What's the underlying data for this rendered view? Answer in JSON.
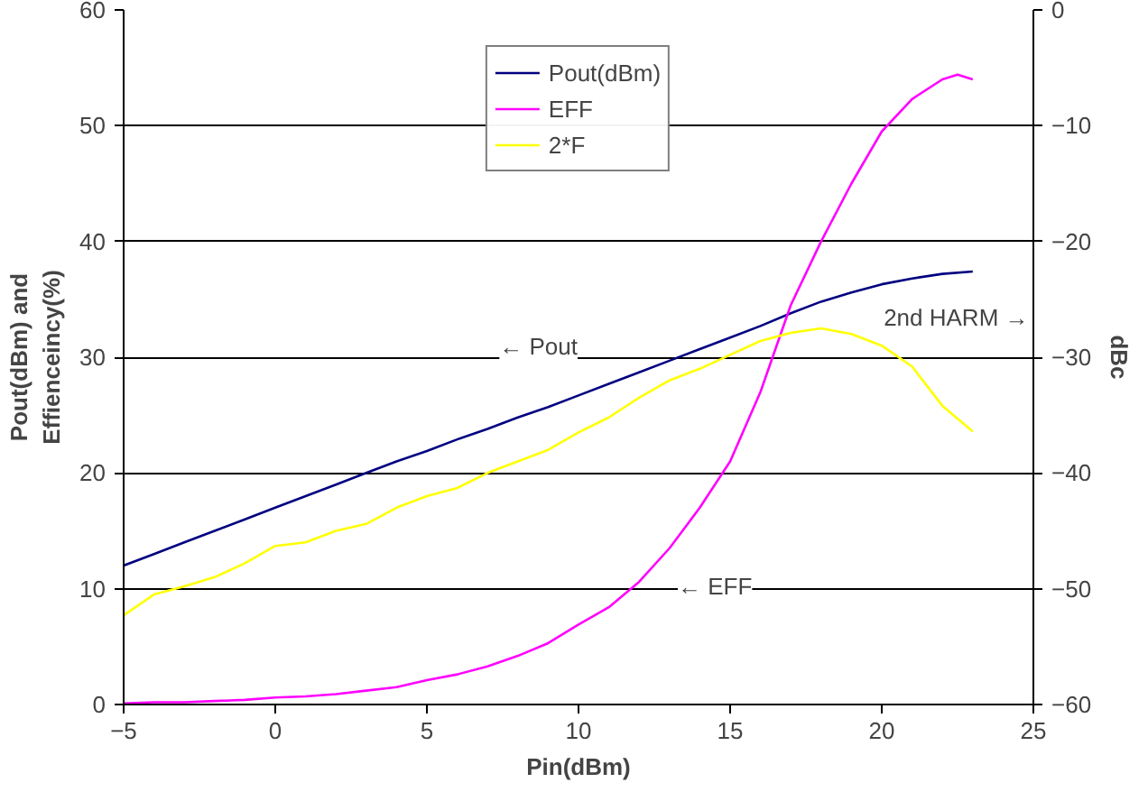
{
  "chart_data": {
    "type": "line",
    "xlabel": "Pin(dBm)",
    "ylabel": "Pout(dBm) and\nEffienceincy(%)",
    "y2label": "dBc",
    "xlim": [
      -5,
      25
    ],
    "xticks": [
      -5,
      0,
      5,
      10,
      15,
      20,
      25
    ],
    "ylim": [
      0,
      60
    ],
    "yticks": [
      0,
      10,
      20,
      30,
      40,
      50,
      60
    ],
    "y2lim": [
      -60,
      0
    ],
    "y2ticks": [
      -60,
      -50,
      -40,
      -30,
      -20,
      -10,
      0
    ],
    "grid": "y",
    "legend": "top",
    "marker": "none",
    "line_style": "solid",
    "series": [
      {
        "name": "Pout(dBm)",
        "color": "#000080",
        "x": [
          -5,
          -4,
          -3,
          -2,
          -1,
          0,
          1,
          2,
          3,
          4,
          5,
          6,
          7,
          8,
          9,
          10,
          11,
          12,
          13,
          14,
          15,
          16,
          17,
          18,
          19,
          20,
          21,
          22,
          23
        ],
        "values": [
          12,
          13,
          14,
          15,
          16,
          17,
          18,
          19,
          20,
          21,
          21.9,
          22.9,
          23.8,
          24.8,
          25.7,
          26.7,
          27.7,
          28.7,
          29.7,
          30.7,
          31.7,
          32.7,
          33.8,
          34.8,
          35.6,
          36.3,
          36.8,
          37.2,
          37.4
        ]
      },
      {
        "name": "EFF",
        "color": "#ff00ff",
        "x": [
          -5,
          -4,
          -3,
          -2,
          -1,
          0,
          1,
          2,
          3,
          4,
          5,
          6,
          7,
          8,
          9,
          10,
          11,
          12,
          13,
          14,
          15,
          16,
          17,
          18,
          19,
          20,
          21,
          22,
          22.5,
          23
        ],
        "values": [
          0.1,
          0.2,
          0.2,
          0.3,
          0.4,
          0.6,
          0.7,
          0.9,
          1.2,
          1.5,
          2.1,
          2.6,
          3.3,
          4.2,
          5.3,
          6.9,
          8.4,
          10.6,
          13.5,
          17,
          21,
          27,
          34.5,
          40,
          45,
          49.5,
          52.3,
          54,
          54.4,
          54
        ]
      },
      {
        "name": "2*F",
        "color": "#ffff00",
        "axis": "y2",
        "x": [
          -5,
          -4,
          -3,
          -2,
          -1,
          0,
          1,
          2,
          3,
          4,
          5,
          6,
          7,
          8,
          9,
          10,
          11,
          12,
          13,
          14,
          15,
          16,
          17,
          18,
          19,
          20,
          21,
          22,
          23
        ],
        "values": [
          -52.3,
          -50.5,
          -49.8,
          -49,
          -47.8,
          -46.3,
          -46,
          -45,
          -44.4,
          -43,
          -42,
          -41.3,
          -40,
          -39,
          -38,
          -36.5,
          -35.2,
          -33.5,
          -32,
          -31,
          -29.8,
          -28.6,
          -27.9,
          -27.5,
          -28,
          -29,
          -30.8,
          -34.2,
          -36.4
        ]
      }
    ],
    "annotations": [
      "← Pout",
      "← EFF",
      "2nd HARM →"
    ]
  }
}
